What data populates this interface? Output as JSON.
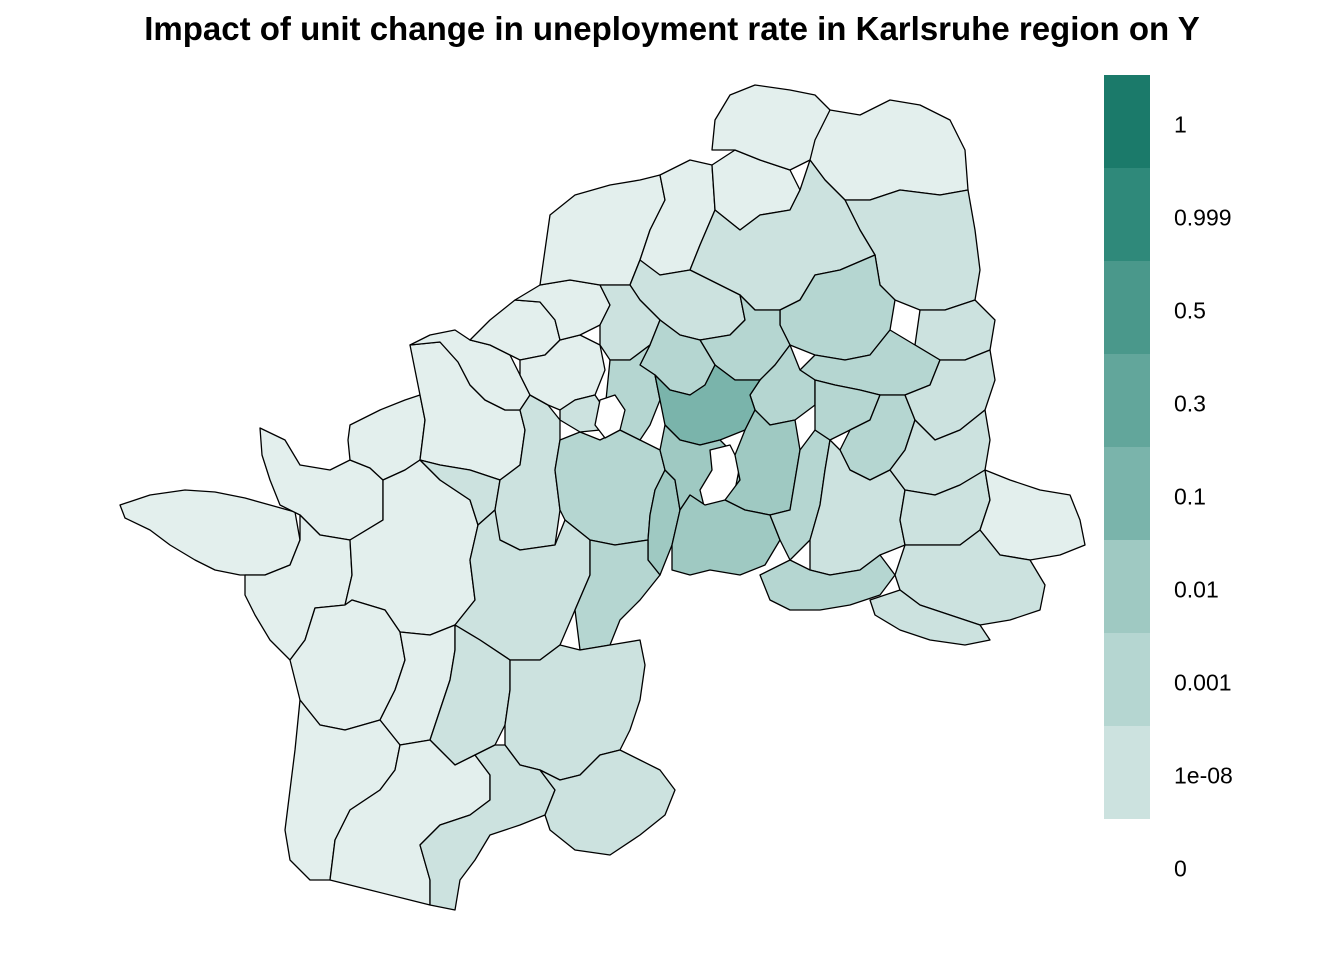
{
  "title": "Impact of unit change in uneployment rate in Karlsruhe region on Y",
  "legend": {
    "labels": [
      "1",
      "0.999",
      "0.5",
      "0.3",
      "0.1",
      "0.01",
      "0.001",
      "1e-08",
      "0"
    ],
    "colors": [
      "#1b7a6a",
      "#2f897a",
      "#4a988b",
      "#62a69b",
      "#7ab4ab",
      "#9fc9c2",
      "#b5d6d1",
      "#cce2df",
      "#e3efed"
    ]
  },
  "map": {
    "stroke_color": "#000000",
    "missing_color": "#ffffff"
  }
}
